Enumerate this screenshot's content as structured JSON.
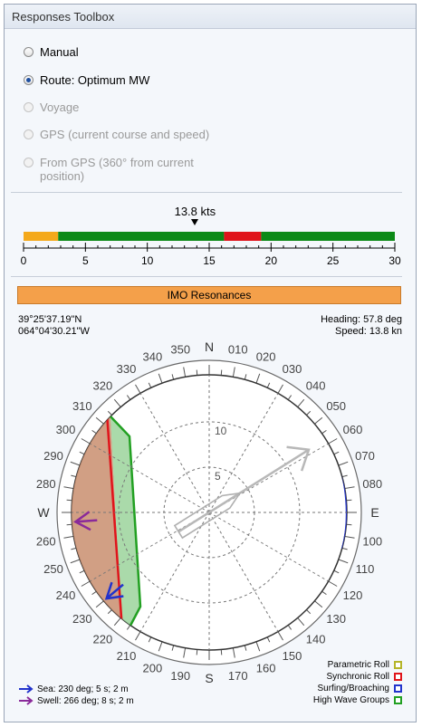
{
  "window": {
    "title": "Responses Toolbox"
  },
  "modes": [
    {
      "label": "Manual",
      "checked": false,
      "enabled": true
    },
    {
      "label": "Route: Optimum MW",
      "checked": true,
      "enabled": true
    },
    {
      "label": "Voyage",
      "checked": false,
      "enabled": false
    },
    {
      "label": "GPS (current course and speed)",
      "checked": false,
      "enabled": false
    },
    {
      "label": "From GPS (360° from current",
      "label2": "position)",
      "checked": false,
      "enabled": false
    }
  ],
  "speed_scale": {
    "current_speed": 13.8,
    "current_label": "13.8 kts",
    "min": 0,
    "max": 30,
    "ticks": [
      "0",
      "5",
      "10",
      "15",
      "20",
      "25",
      "30"
    ],
    "bands": [
      {
        "from": 0,
        "to": 2.8,
        "color": "#f4a91b"
      },
      {
        "from": 2.8,
        "to": 16.2,
        "color": "#0c8a17"
      },
      {
        "from": 16.2,
        "to": 19.2,
        "color": "#e0141b"
      },
      {
        "from": 19.2,
        "to": 30,
        "color": "#0c8a17"
      }
    ]
  },
  "imo_button": "IMO Resonances",
  "position": {
    "lat": "39°25'37.19\"N",
    "lon": "064°04'30.21\"W"
  },
  "status": {
    "heading": "Heading: 57.8 deg",
    "speed": "Speed: 13.8 kn"
  },
  "polar": {
    "heading_deg": 57.8,
    "rings": [
      "5",
      "10"
    ],
    "cardinals": {
      "n": "N",
      "e": "E",
      "s": "S",
      "w": "W"
    },
    "bearing_labels": [
      "010",
      "020",
      "030",
      "040",
      "050",
      "060",
      "070",
      "080",
      "100",
      "110",
      "120",
      "130",
      "140",
      "150",
      "160",
      "170",
      "190",
      "200",
      "210",
      "220",
      "230",
      "240",
      "250",
      "260",
      "280",
      "290",
      "300",
      "310",
      "320",
      "330",
      "340",
      "350"
    ],
    "colors": {
      "parametric": "#b5b52a",
      "synchronic": "#e0141b",
      "surfing": "#2233cc",
      "high_wave": "#22a022",
      "fill_brown": "#c98e6e",
      "fill_green": "#9bd39b"
    }
  },
  "legend": [
    {
      "label": "Parametric Roll",
      "color": "#b5b52a"
    },
    {
      "label": "Synchronic Roll",
      "color": "#e0141b"
    },
    {
      "label": "Surfing/Broaching",
      "color": "#2233cc"
    },
    {
      "label": "High Wave Groups",
      "color": "#22a022"
    }
  ],
  "waves": [
    {
      "label": "Sea: 230 deg; 5 s; 2 m",
      "color": "#2233cc"
    },
    {
      "label": "Swell: 266 deg; 8 s; 2 m",
      "color": "#8a2a9a"
    }
  ]
}
